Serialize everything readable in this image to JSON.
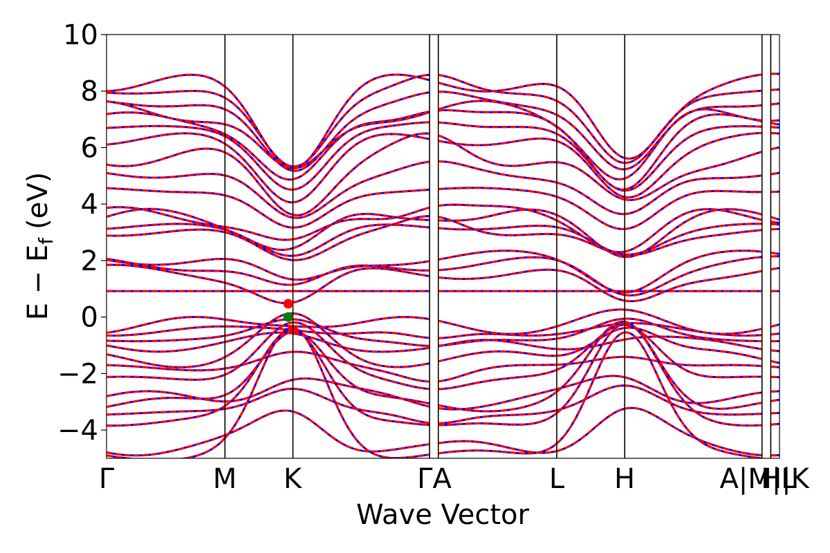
{
  "chart_data": {
    "type": "line",
    "title": "",
    "xlabel": "Wave Vector",
    "ylabel_main": "E − E",
    "ylabel_sub": "f",
    "ylabel_unit": "(eV)",
    "ylim": [
      -5,
      10
    ],
    "y_ticks": [
      "−4",
      "−2",
      "0",
      "2",
      "4",
      "6",
      "8",
      "10"
    ],
    "y_tick_values": [
      -4,
      -2,
      0,
      2,
      4,
      6,
      8,
      10
    ],
    "x_ticks": [
      "Γ",
      "M",
      "K",
      "Γ",
      "A",
      "L",
      "H",
      "A",
      "M",
      "L",
      "H",
      "K"
    ],
    "x_tick_labels_shown": [
      "Γ",
      "M",
      "K",
      "ΓA",
      "L",
      "H",
      "A|M|L",
      "H|K"
    ],
    "xlim": [
      0,
      1
    ],
    "high_symmetry_points": [
      {
        "label": "Γ",
        "x": 0.0
      },
      {
        "label": "M",
        "x": 0.176
      },
      {
        "label": "K",
        "x": 0.277
      },
      {
        "label": "Γ",
        "x": 0.48
      },
      {
        "label": "A",
        "x": 0.493
      },
      {
        "label": "L",
        "x": 0.669
      },
      {
        "label": "H",
        "x": 0.77
      },
      {
        "label": "A|M",
        "x": 0.974
      },
      {
        "label": "L|H",
        "x": 0.987
      },
      {
        "label": "K",
        "x": 1.0
      }
    ],
    "grid": false,
    "series": [
      {
        "style": "solid",
        "color": "#0000ff"
      },
      {
        "style": "dashed",
        "color": "#ff0000"
      }
    ],
    "band_gap_markers": {
      "cbm": {
        "x": 0.27,
        "y": 0.47,
        "color": "#ff0000"
      },
      "vbm": {
        "x": 0.27,
        "y": 0.0,
        "color": "#008000"
      }
    },
    "band_energies_at_gamma": [
      -4.9,
      -4.6,
      -3.7,
      -3.4,
      -3.1,
      -2.9,
      -2.2,
      -1.8,
      -1.5,
      -1.0,
      -0.8,
      -0.5,
      -0.3,
      0.92,
      1.6,
      1.9,
      2.1,
      3.0,
      3.2,
      3.5,
      3.6,
      4.5,
      5.1,
      5.7,
      6.3,
      6.7,
      7.0,
      7.3,
      7.6,
      8.0,
      8.3
    ]
  }
}
